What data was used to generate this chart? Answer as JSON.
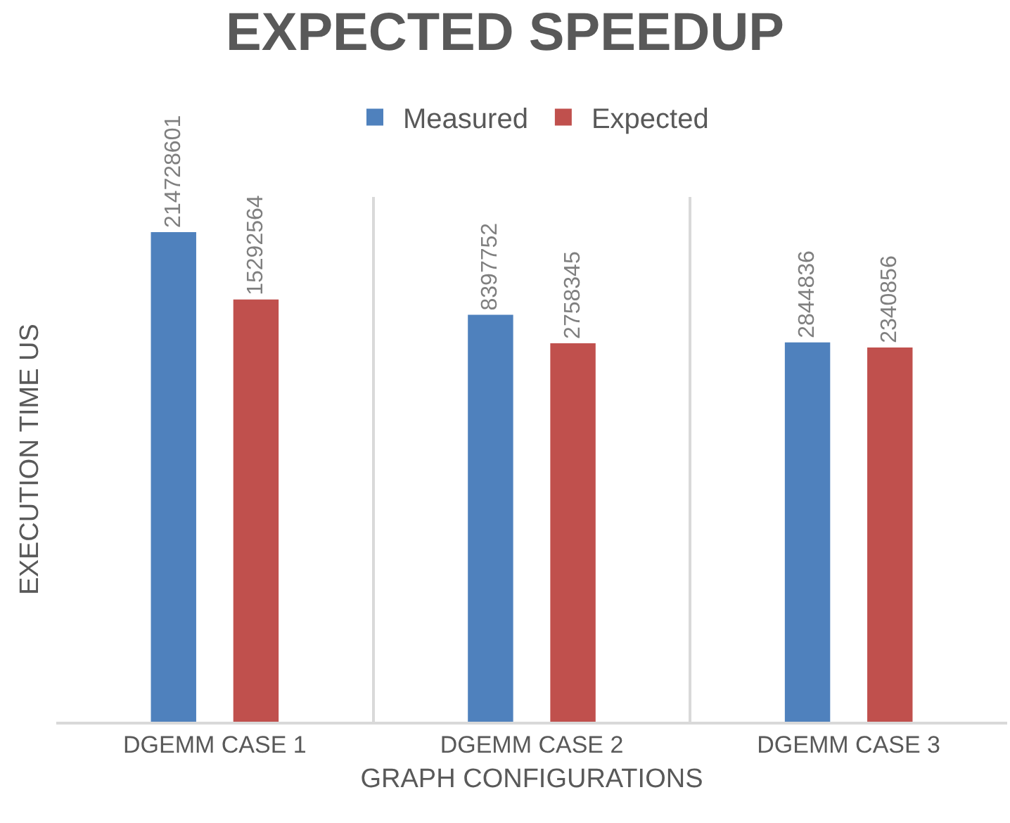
{
  "chart_data": {
    "type": "bar",
    "title": "EXPECTED SPEEDUP",
    "xlabel": "GRAPH CONFIGURATIONS",
    "ylabel": "EXECUTION TIME US",
    "categories": [
      "DGEMM CASE 1",
      "DGEMM CASE 2",
      "DGEMM CASE 3"
    ],
    "series": [
      {
        "name": "Measured",
        "color": "#4f81bd",
        "values": [
          214728601,
          8397752,
          2844836
        ]
      },
      {
        "name": "Expected",
        "color": "#c0504d",
        "values": [
          15292564,
          2758345,
          2340856
        ]
      }
    ],
    "log": true,
    "ylim": [
      1,
      850000000
    ],
    "data_labels": true,
    "grid": "x",
    "legend": "top",
    "tick_labels": "x"
  }
}
